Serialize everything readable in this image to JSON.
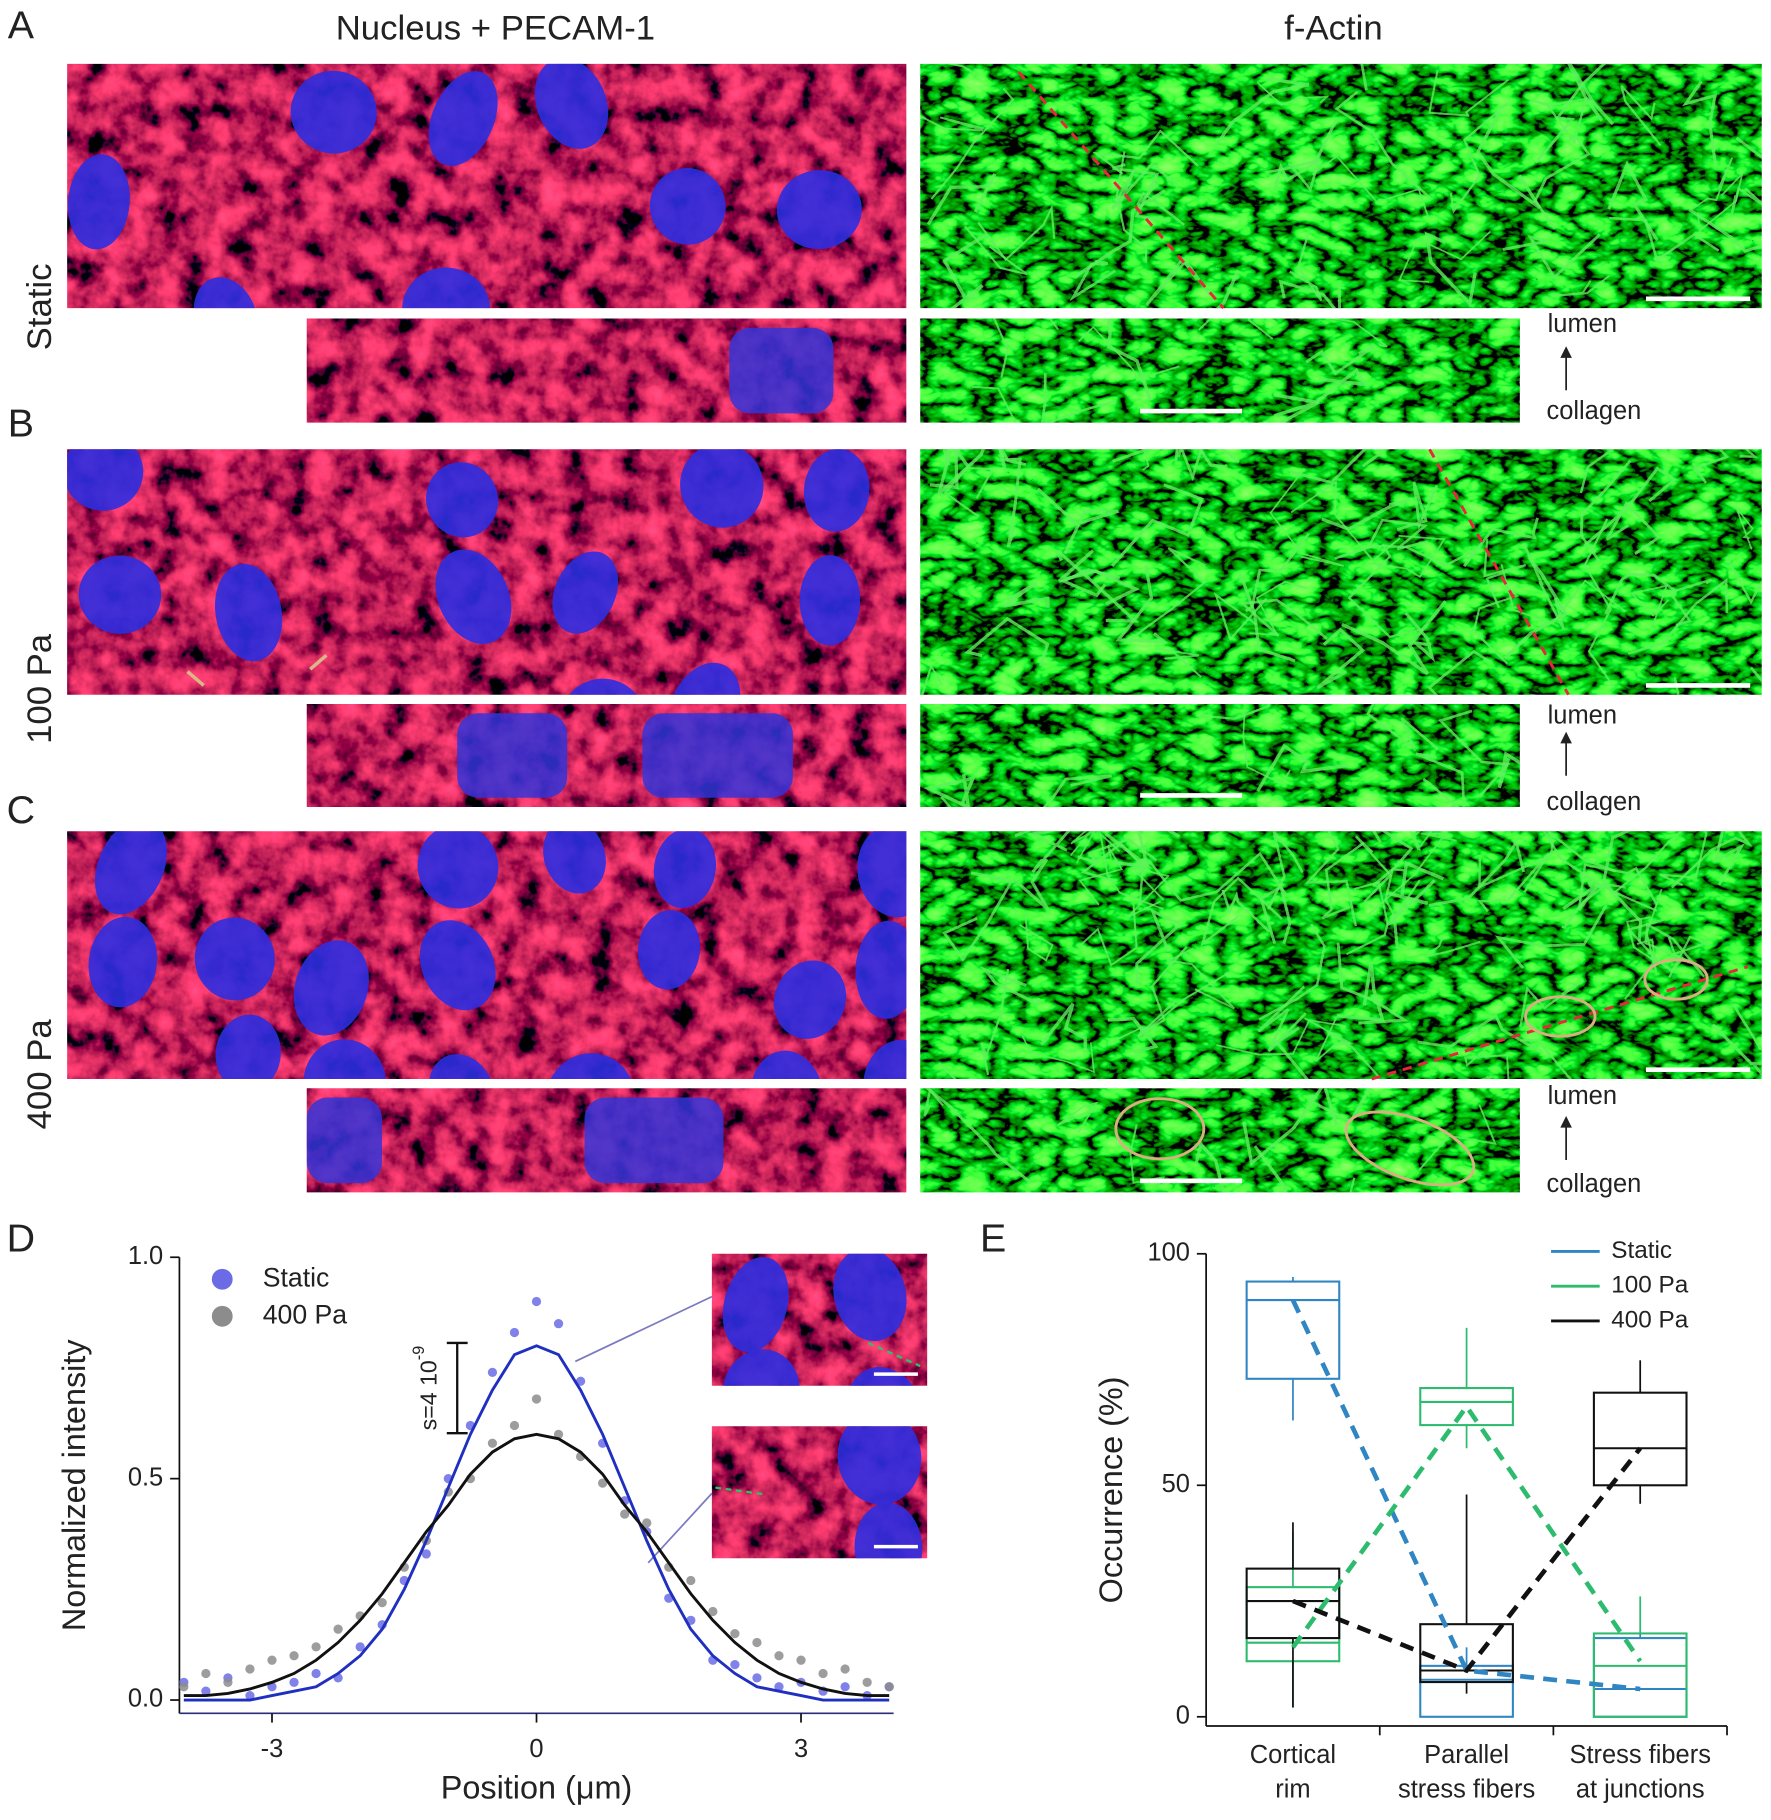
{
  "figure": {
    "panel_labels": [
      "A",
      "B",
      "C",
      "D",
      "E"
    ],
    "column_titles": [
      "Nucleus + PECAM-1",
      "f-Actin"
    ],
    "row_labels": [
      "Static",
      "100 Pa",
      "400 Pa"
    ],
    "orientation_labels": {
      "top": "lumen",
      "bottom": "collagen"
    }
  },
  "chart_data": [
    {
      "type": "scatter",
      "xlabel": "Position (μm)",
      "ylabel": "Normalized intensity",
      "x": [
        -4,
        -3.75,
        -3.5,
        -3.25,
        -3,
        -2.75,
        -2.5,
        -2.25,
        -2,
        -1.75,
        -1.5,
        -1.25,
        -1,
        -0.75,
        -0.5,
        -0.25,
        0,
        0.25,
        0.5,
        0.75,
        1,
        1.25,
        1.5,
        1.75,
        2,
        2.25,
        2.5,
        2.75,
        3,
        3.25,
        3.5,
        3.75,
        4
      ],
      "xlim": [
        -4.05,
        4.05
      ],
      "xticks": [
        -3,
        0,
        3
      ],
      "ylim": [
        -0.03,
        1.0
      ],
      "yticks": [
        {
          "value": 0,
          "label": "0.0"
        },
        {
          "value": 0.5,
          "label": "0.5"
        },
        {
          "value": 1,
          "label": "1.0"
        }
      ],
      "series": [
        {
          "name": "Static",
          "color": "#6b6be6",
          "fit_color": "#1f2fbf",
          "values": [
            0.04,
            0.02,
            0.05,
            0.01,
            0.03,
            0.04,
            0.06,
            0.05,
            0.12,
            0.17,
            0.27,
            0.33,
            0.5,
            0.62,
            0.74,
            0.83,
            0.9,
            0.85,
            0.72,
            0.58,
            0.45,
            0.38,
            0.23,
            0.18,
            0.09,
            0.08,
            0.05,
            0.03,
            0.04,
            0.02,
            0.03,
            0.01,
            0.03
          ],
          "fit": [
            0,
            0,
            0,
            0,
            0.01,
            0.02,
            0.03,
            0.06,
            0.1,
            0.16,
            0.25,
            0.36,
            0.48,
            0.6,
            0.7,
            0.78,
            0.8,
            0.78,
            0.7,
            0.6,
            0.48,
            0.36,
            0.25,
            0.16,
            0.1,
            0.06,
            0.03,
            0.02,
            0.01,
            0,
            0,
            0,
            0
          ]
        },
        {
          "name": "400 Pa",
          "color": "#8c8c8c",
          "fit_color": "#111111",
          "values": [
            0.03,
            0.06,
            0.04,
            0.07,
            0.09,
            0.1,
            0.12,
            0.16,
            0.19,
            0.22,
            0.3,
            0.36,
            0.47,
            0.5,
            0.58,
            0.62,
            0.68,
            0.6,
            0.55,
            0.49,
            0.42,
            0.4,
            0.3,
            0.27,
            0.2,
            0.15,
            0.13,
            0.1,
            0.09,
            0.06,
            0.07,
            0.04,
            0.03
          ],
          "fit": [
            0.01,
            0.01,
            0.015,
            0.025,
            0.04,
            0.06,
            0.09,
            0.13,
            0.18,
            0.24,
            0.31,
            0.38,
            0.44,
            0.51,
            0.56,
            0.59,
            0.6,
            0.59,
            0.56,
            0.51,
            0.44,
            0.38,
            0.31,
            0.24,
            0.18,
            0.13,
            0.09,
            0.06,
            0.04,
            0.025,
            0.015,
            0.01,
            0.01
          ]
        }
      ],
      "annotation": {
        "text": "s=4 10",
        "exponent": "-9"
      }
    },
    {
      "type": "box",
      "ylabel": "Occurrence (%)",
      "categories": [
        [
          "Cortical",
          "rim"
        ],
        [
          "Parallel",
          "stress fibers"
        ],
        [
          "Stress fibers",
          "at junctions"
        ]
      ],
      "ylim": [
        -2,
        100
      ],
      "yticks": [
        0,
        50,
        100
      ],
      "series": [
        {
          "name": "Static",
          "color": "#2f86c3",
          "boxes": [
            {
              "whisker_low": 64,
              "q1": 73,
              "median": 90,
              "q3": 94,
              "whisker_high": 95
            },
            {
              "whisker_low": 0,
              "q1": 0,
              "median": 8,
              "q3": 11,
              "whisker_high": 15
            },
            {
              "whisker_low": 0,
              "q1": 0,
              "median": 6,
              "q3": 17,
              "whisker_high": 18
            }
          ],
          "means": [
            90,
            10,
            6
          ]
        },
        {
          "name": "100 Pa",
          "color": "#2dbb6e",
          "boxes": [
            {
              "whisker_low": 2,
              "q1": 12,
              "median": 16,
              "q3": 28,
              "whisker_high": 40
            },
            {
              "whisker_low": 58,
              "q1": 63,
              "median": 68,
              "q3": 71,
              "whisker_high": 84
            },
            {
              "whisker_low": 0,
              "q1": 0,
              "median": 11,
              "q3": 18,
              "whisker_high": 26
            }
          ],
          "means": [
            15,
            67,
            12
          ]
        },
        {
          "name": "400 Pa",
          "color": "#111111",
          "boxes": [
            {
              "whisker_low": 2,
              "q1": 17,
              "median": 25,
              "q3": 32,
              "whisker_high": 42
            },
            {
              "whisker_low": 5,
              "q1": 7.5,
              "median": 10,
              "q3": 20,
              "whisker_high": 48
            },
            {
              "whisker_low": 46,
              "q1": 50,
              "median": 58,
              "q3": 70,
              "whisker_high": 77
            }
          ],
          "means": [
            25,
            10,
            58
          ]
        }
      ]
    }
  ]
}
